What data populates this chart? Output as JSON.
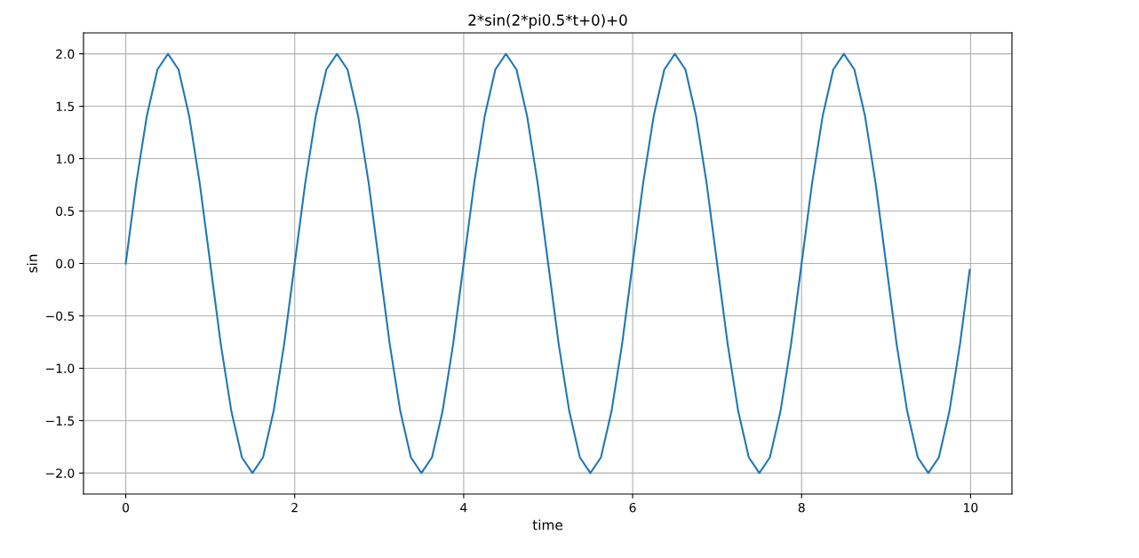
{
  "chart_data": {
    "type": "line",
    "title": "2*sin(2*pi0.5*t+0)+0",
    "xlabel": "time",
    "ylabel": "sin",
    "series": [
      {
        "color": "#1f77b4",
        "x": [
          0,
          0.125,
          0.25,
          0.375,
          0.5,
          0.625,
          0.75,
          0.875,
          1,
          1.125,
          1.25,
          1.375,
          1.5,
          1.625,
          1.75,
          1.875,
          2,
          2.125,
          2.25,
          2.375,
          2.5,
          2.625,
          2.75,
          2.875,
          3,
          3.125,
          3.25,
          3.375,
          3.5,
          3.625,
          3.75,
          3.875,
          4,
          4.125,
          4.25,
          4.375,
          4.5,
          4.625,
          4.75,
          4.875,
          5,
          5.125,
          5.25,
          5.375,
          5.5,
          5.625,
          5.75,
          5.875,
          6,
          6.125,
          6.25,
          6.375,
          6.5,
          6.625,
          6.75,
          6.875,
          7,
          7.125,
          7.25,
          7.375,
          7.5,
          7.625,
          7.75,
          7.875,
          8,
          8.125,
          8.25,
          8.375,
          8.5,
          8.625,
          8.75,
          8.875,
          9,
          9.125,
          9.25,
          9.375,
          9.5,
          9.625,
          9.75,
          9.875,
          9.99
        ],
        "values": [
          0,
          0.77,
          1.41,
          1.85,
          2,
          1.85,
          1.41,
          0.77,
          0,
          -0.77,
          -1.41,
          -1.85,
          -2,
          -1.85,
          -1.41,
          -0.77,
          0,
          0.77,
          1.41,
          1.85,
          2,
          1.85,
          1.41,
          0.77,
          0,
          -0.77,
          -1.41,
          -1.85,
          -2,
          -1.85,
          -1.41,
          -0.77,
          0,
          0.77,
          1.41,
          1.85,
          2,
          1.85,
          1.41,
          0.77,
          0,
          -0.77,
          -1.41,
          -1.85,
          -2,
          -1.85,
          -1.41,
          -0.77,
          0,
          0.77,
          1.41,
          1.85,
          2,
          1.85,
          1.41,
          0.77,
          0,
          -0.77,
          -1.41,
          -1.85,
          -2,
          -1.85,
          -1.41,
          -0.77,
          0,
          0.77,
          1.41,
          1.85,
          2,
          1.85,
          1.41,
          0.77,
          0,
          -0.77,
          -1.41,
          -1.85,
          -2,
          -1.85,
          -1.41,
          -0.77,
          -0.06
        ]
      }
    ],
    "xlim": [
      -0.5,
      10.49
    ],
    "ylim": [
      -2.2,
      2.2
    ],
    "xticks": [
      0,
      2,
      4,
      6,
      8,
      10
    ],
    "yticks": [
      {
        "value": -2,
        "label": "−2.0"
      },
      {
        "value": -1.5,
        "label": "−1.5"
      },
      {
        "value": -1,
        "label": "−1.0"
      },
      {
        "value": -0.5,
        "label": "−0.5"
      },
      {
        "value": 0,
        "label": "0.0"
      },
      {
        "value": 0.5,
        "label": "0.5"
      },
      {
        "value": 1,
        "label": "1.0"
      },
      {
        "value": 1.5,
        "label": "1.5"
      },
      {
        "value": 2,
        "label": "2.0"
      }
    ],
    "grid": true
  }
}
